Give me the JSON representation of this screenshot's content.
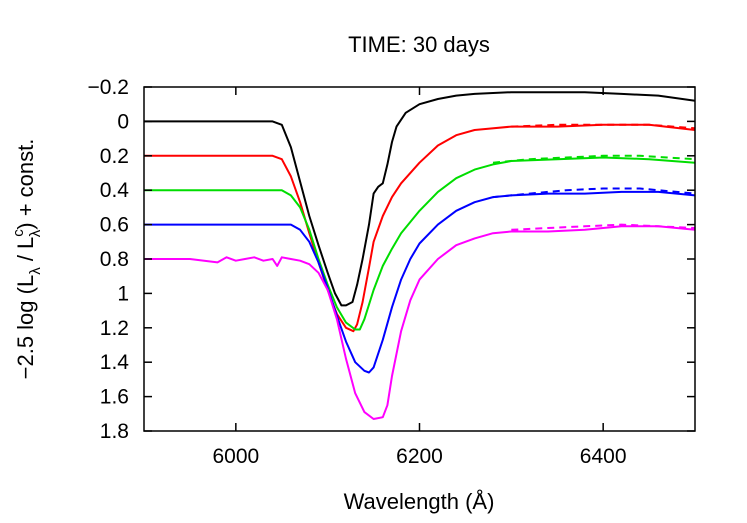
{
  "chart_data": {
    "type": "line",
    "title": "TIME: 30 days",
    "xlabel": "Wavelength (Å)",
    "ylabel": "−2.5 log (Lλ / Lᶜλ) + const.",
    "ylabel_parts": {
      "lead": "−2.5 log (L",
      "sub1": "λ",
      "mid": " / L",
      "sup": "c",
      "sub2": "λ",
      "tail": ") + const."
    },
    "xlim": [
      5900,
      6500
    ],
    "ylim": [
      -0.2,
      1.8
    ],
    "y_inverted": true,
    "x_ticks": [
      6000,
      6200,
      6400
    ],
    "x_tick_labels": [
      "6000",
      "6200",
      "6400"
    ],
    "y_ticks": [
      -0.2,
      0,
      0.2,
      0.4,
      0.6,
      0.8,
      1,
      1.2,
      1.4,
      1.6,
      1.8
    ],
    "y_tick_labels": [
      "−0.2",
      "0",
      "0.2",
      "0.4",
      "0.6",
      "0.8",
      "1",
      "1.2",
      "1.4",
      "1.6",
      "1.8"
    ],
    "grid": false,
    "series": [
      {
        "color": "#000000",
        "style": "solid",
        "x": [
          5900,
          6000,
          6030,
          6040,
          6050,
          6060,
          6070,
          6080,
          6090,
          6100,
          6108,
          6115,
          6120,
          6127,
          6132,
          6138,
          6145,
          6150,
          6155,
          6160,
          6165,
          6170,
          6175,
          6185,
          6200,
          6220,
          6240,
          6260,
          6300,
          6340,
          6380,
          6420,
          6460,
          6500
        ],
        "y": [
          0,
          0,
          0,
          0,
          0.02,
          0.15,
          0.35,
          0.55,
          0.72,
          0.88,
          1.0,
          1.07,
          1.07,
          1.05,
          0.95,
          0.8,
          0.6,
          0.42,
          0.38,
          0.36,
          0.25,
          0.12,
          0.03,
          -0.05,
          -0.1,
          -0.13,
          -0.15,
          -0.16,
          -0.17,
          -0.17,
          -0.17,
          -0.16,
          -0.15,
          -0.12
        ]
      },
      {
        "color": "#ff0000",
        "style": "solid",
        "x": [
          5900,
          6000,
          6040,
          6050,
          6060,
          6070,
          6080,
          6090,
          6100,
          6110,
          6120,
          6128,
          6132,
          6138,
          6145,
          6150,
          6160,
          6170,
          6180,
          6200,
          6220,
          6240,
          6260,
          6300,
          6350,
          6400,
          6450,
          6500
        ],
        "y": [
          0.2,
          0.2,
          0.2,
          0.22,
          0.32,
          0.47,
          0.65,
          0.82,
          0.98,
          1.12,
          1.2,
          1.22,
          1.18,
          1.05,
          0.85,
          0.7,
          0.55,
          0.44,
          0.36,
          0.24,
          0.14,
          0.08,
          0.05,
          0.03,
          0.03,
          0.02,
          0.02,
          0.05
        ]
      },
      {
        "color": "#ff0000",
        "style": "dashed",
        "x": [
          6300,
          6350,
          6400,
          6450,
          6500
        ],
        "y": [
          0.03,
          0.02,
          0.02,
          0.02,
          0.04
        ]
      },
      {
        "color": "#00dd00",
        "style": "solid",
        "x": [
          5900,
          6000,
          6050,
          6060,
          6070,
          6080,
          6090,
          6100,
          6110,
          6120,
          6130,
          6135,
          6140,
          6150,
          6160,
          6170,
          6180,
          6200,
          6220,
          6240,
          6260,
          6280,
          6300,
          6350,
          6400,
          6450,
          6500
        ],
        "y": [
          0.4,
          0.4,
          0.4,
          0.43,
          0.5,
          0.63,
          0.8,
          0.95,
          1.08,
          1.17,
          1.21,
          1.21,
          1.15,
          0.98,
          0.84,
          0.74,
          0.65,
          0.52,
          0.41,
          0.33,
          0.28,
          0.25,
          0.23,
          0.22,
          0.21,
          0.22,
          0.24
        ]
      },
      {
        "color": "#00dd00",
        "style": "dashed",
        "x": [
          6280,
          6320,
          6360,
          6400,
          6440,
          6470,
          6500
        ],
        "y": [
          0.24,
          0.22,
          0.21,
          0.2,
          0.2,
          0.21,
          0.22
        ]
      },
      {
        "color": "#0000ff",
        "style": "solid",
        "x": [
          5900,
          6000,
          6060,
          6070,
          6080,
          6090,
          6100,
          6110,
          6120,
          6130,
          6140,
          6145,
          6150,
          6160,
          6170,
          6180,
          6190,
          6200,
          6220,
          6240,
          6260,
          6280,
          6300,
          6340,
          6380,
          6420,
          6460,
          6500
        ],
        "y": [
          0.6,
          0.6,
          0.6,
          0.63,
          0.7,
          0.82,
          0.97,
          1.13,
          1.28,
          1.4,
          1.45,
          1.46,
          1.43,
          1.27,
          1.08,
          0.92,
          0.8,
          0.71,
          0.6,
          0.52,
          0.47,
          0.44,
          0.43,
          0.42,
          0.42,
          0.41,
          0.41,
          0.43
        ]
      },
      {
        "color": "#0000ff",
        "style": "dashed",
        "x": [
          6280,
          6320,
          6360,
          6400,
          6440,
          6480,
          6500
        ],
        "y": [
          0.44,
          0.42,
          0.4,
          0.39,
          0.39,
          0.41,
          0.42
        ]
      },
      {
        "color": "#ff00ff",
        "style": "solid",
        "x": [
          5900,
          5950,
          5980,
          5990,
          6000,
          6010,
          6020,
          6030,
          6040,
          6045,
          6050,
          6060,
          6070,
          6080,
          6090,
          6100,
          6110,
          6120,
          6130,
          6140,
          6150,
          6160,
          6165,
          6170,
          6180,
          6190,
          6200,
          6220,
          6240,
          6260,
          6280,
          6300,
          6340,
          6380,
          6420,
          6460,
          6500
        ],
        "y": [
          0.8,
          0.8,
          0.82,
          0.79,
          0.81,
          0.8,
          0.79,
          0.81,
          0.8,
          0.84,
          0.79,
          0.8,
          0.81,
          0.83,
          0.88,
          0.98,
          1.15,
          1.38,
          1.58,
          1.69,
          1.73,
          1.72,
          1.65,
          1.48,
          1.22,
          1.04,
          0.92,
          0.8,
          0.72,
          0.68,
          0.65,
          0.64,
          0.64,
          0.63,
          0.61,
          0.61,
          0.63
        ]
      },
      {
        "color": "#ff00ff",
        "style": "dashed",
        "x": [
          6300,
          6340,
          6380,
          6420,
          6460,
          6500
        ],
        "y": [
          0.63,
          0.62,
          0.61,
          0.6,
          0.61,
          0.62
        ]
      }
    ]
  }
}
